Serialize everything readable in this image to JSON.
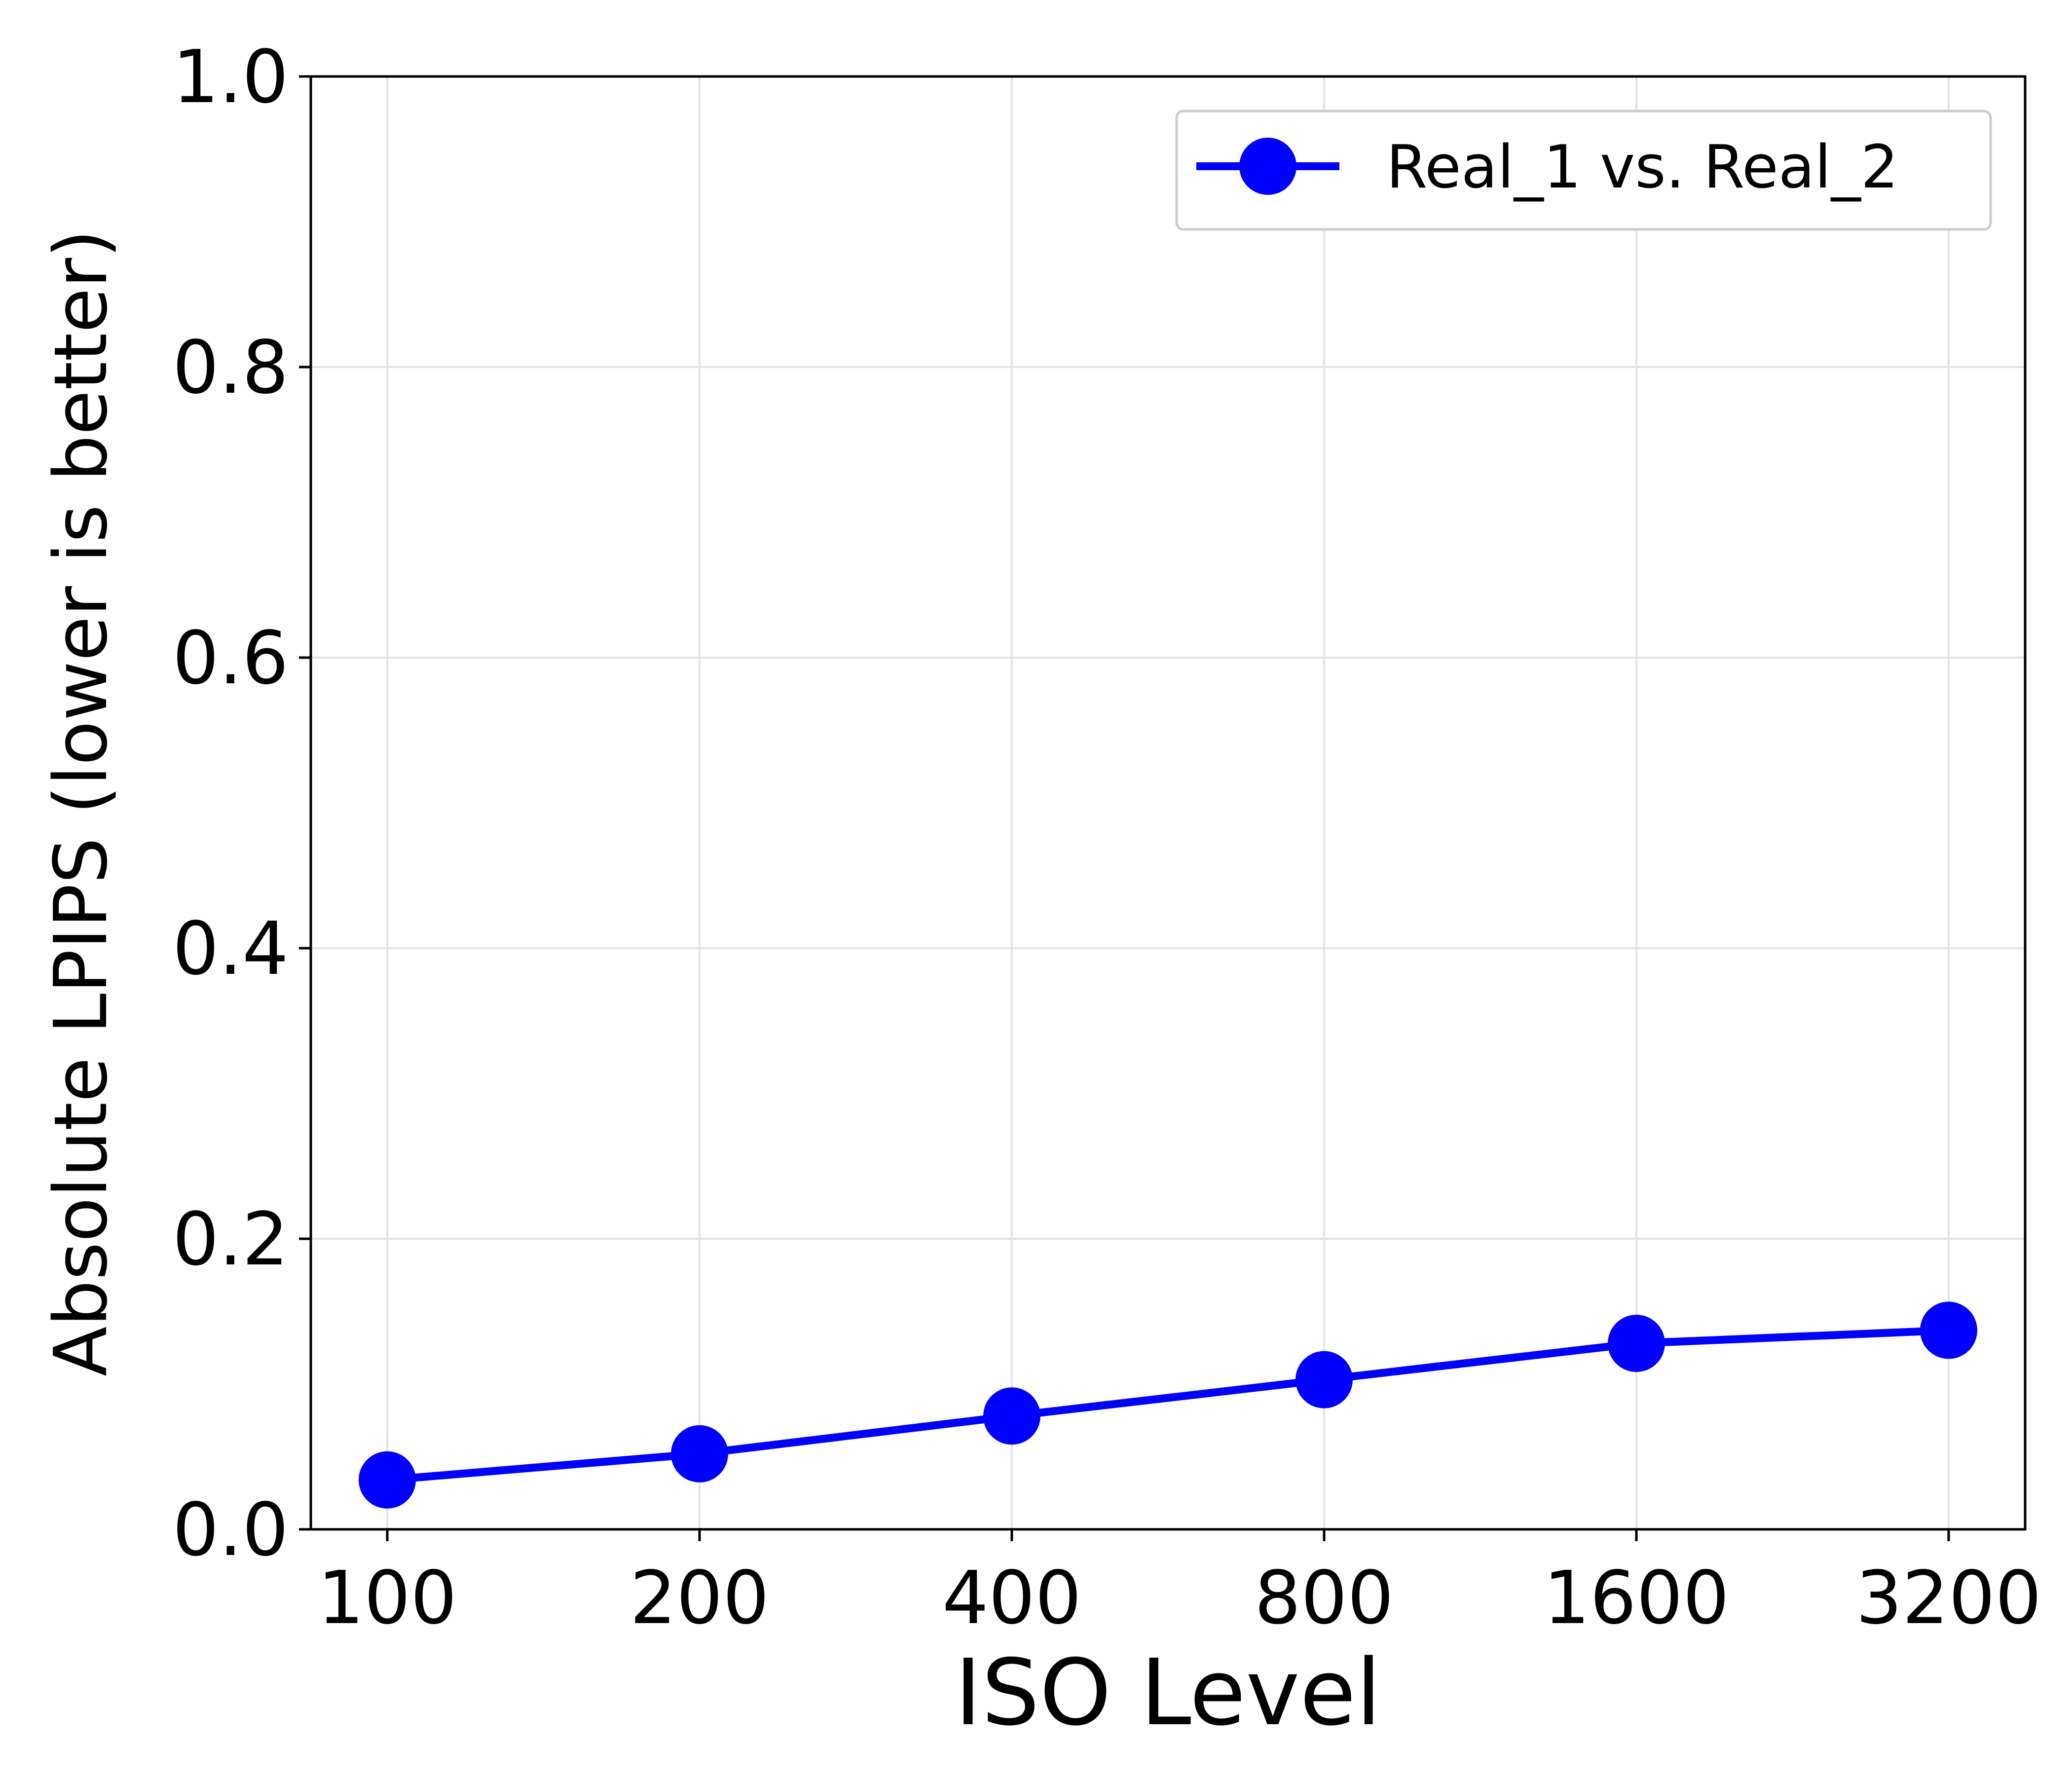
{
  "chart_data": {
    "type": "line",
    "title": "",
    "xlabel": "ISO Level",
    "ylabel": "Absolute LPIPS  (lower is better)",
    "categories": [
      "100",
      "200",
      "400",
      "800",
      "1600",
      "3200"
    ],
    "ylim": [
      0.0,
      1.0
    ],
    "yticks": [
      "0.0",
      "0.2",
      "0.4",
      "0.6",
      "0.8",
      "1.0"
    ],
    "grid": true,
    "legend_position": "top-right",
    "series": [
      {
        "name": "Real_1 vs. Real_2",
        "color": "#0000ff",
        "marker": "circle",
        "values": [
          0.034,
          0.052,
          0.078,
          0.103,
          0.128,
          0.137
        ]
      }
    ]
  }
}
